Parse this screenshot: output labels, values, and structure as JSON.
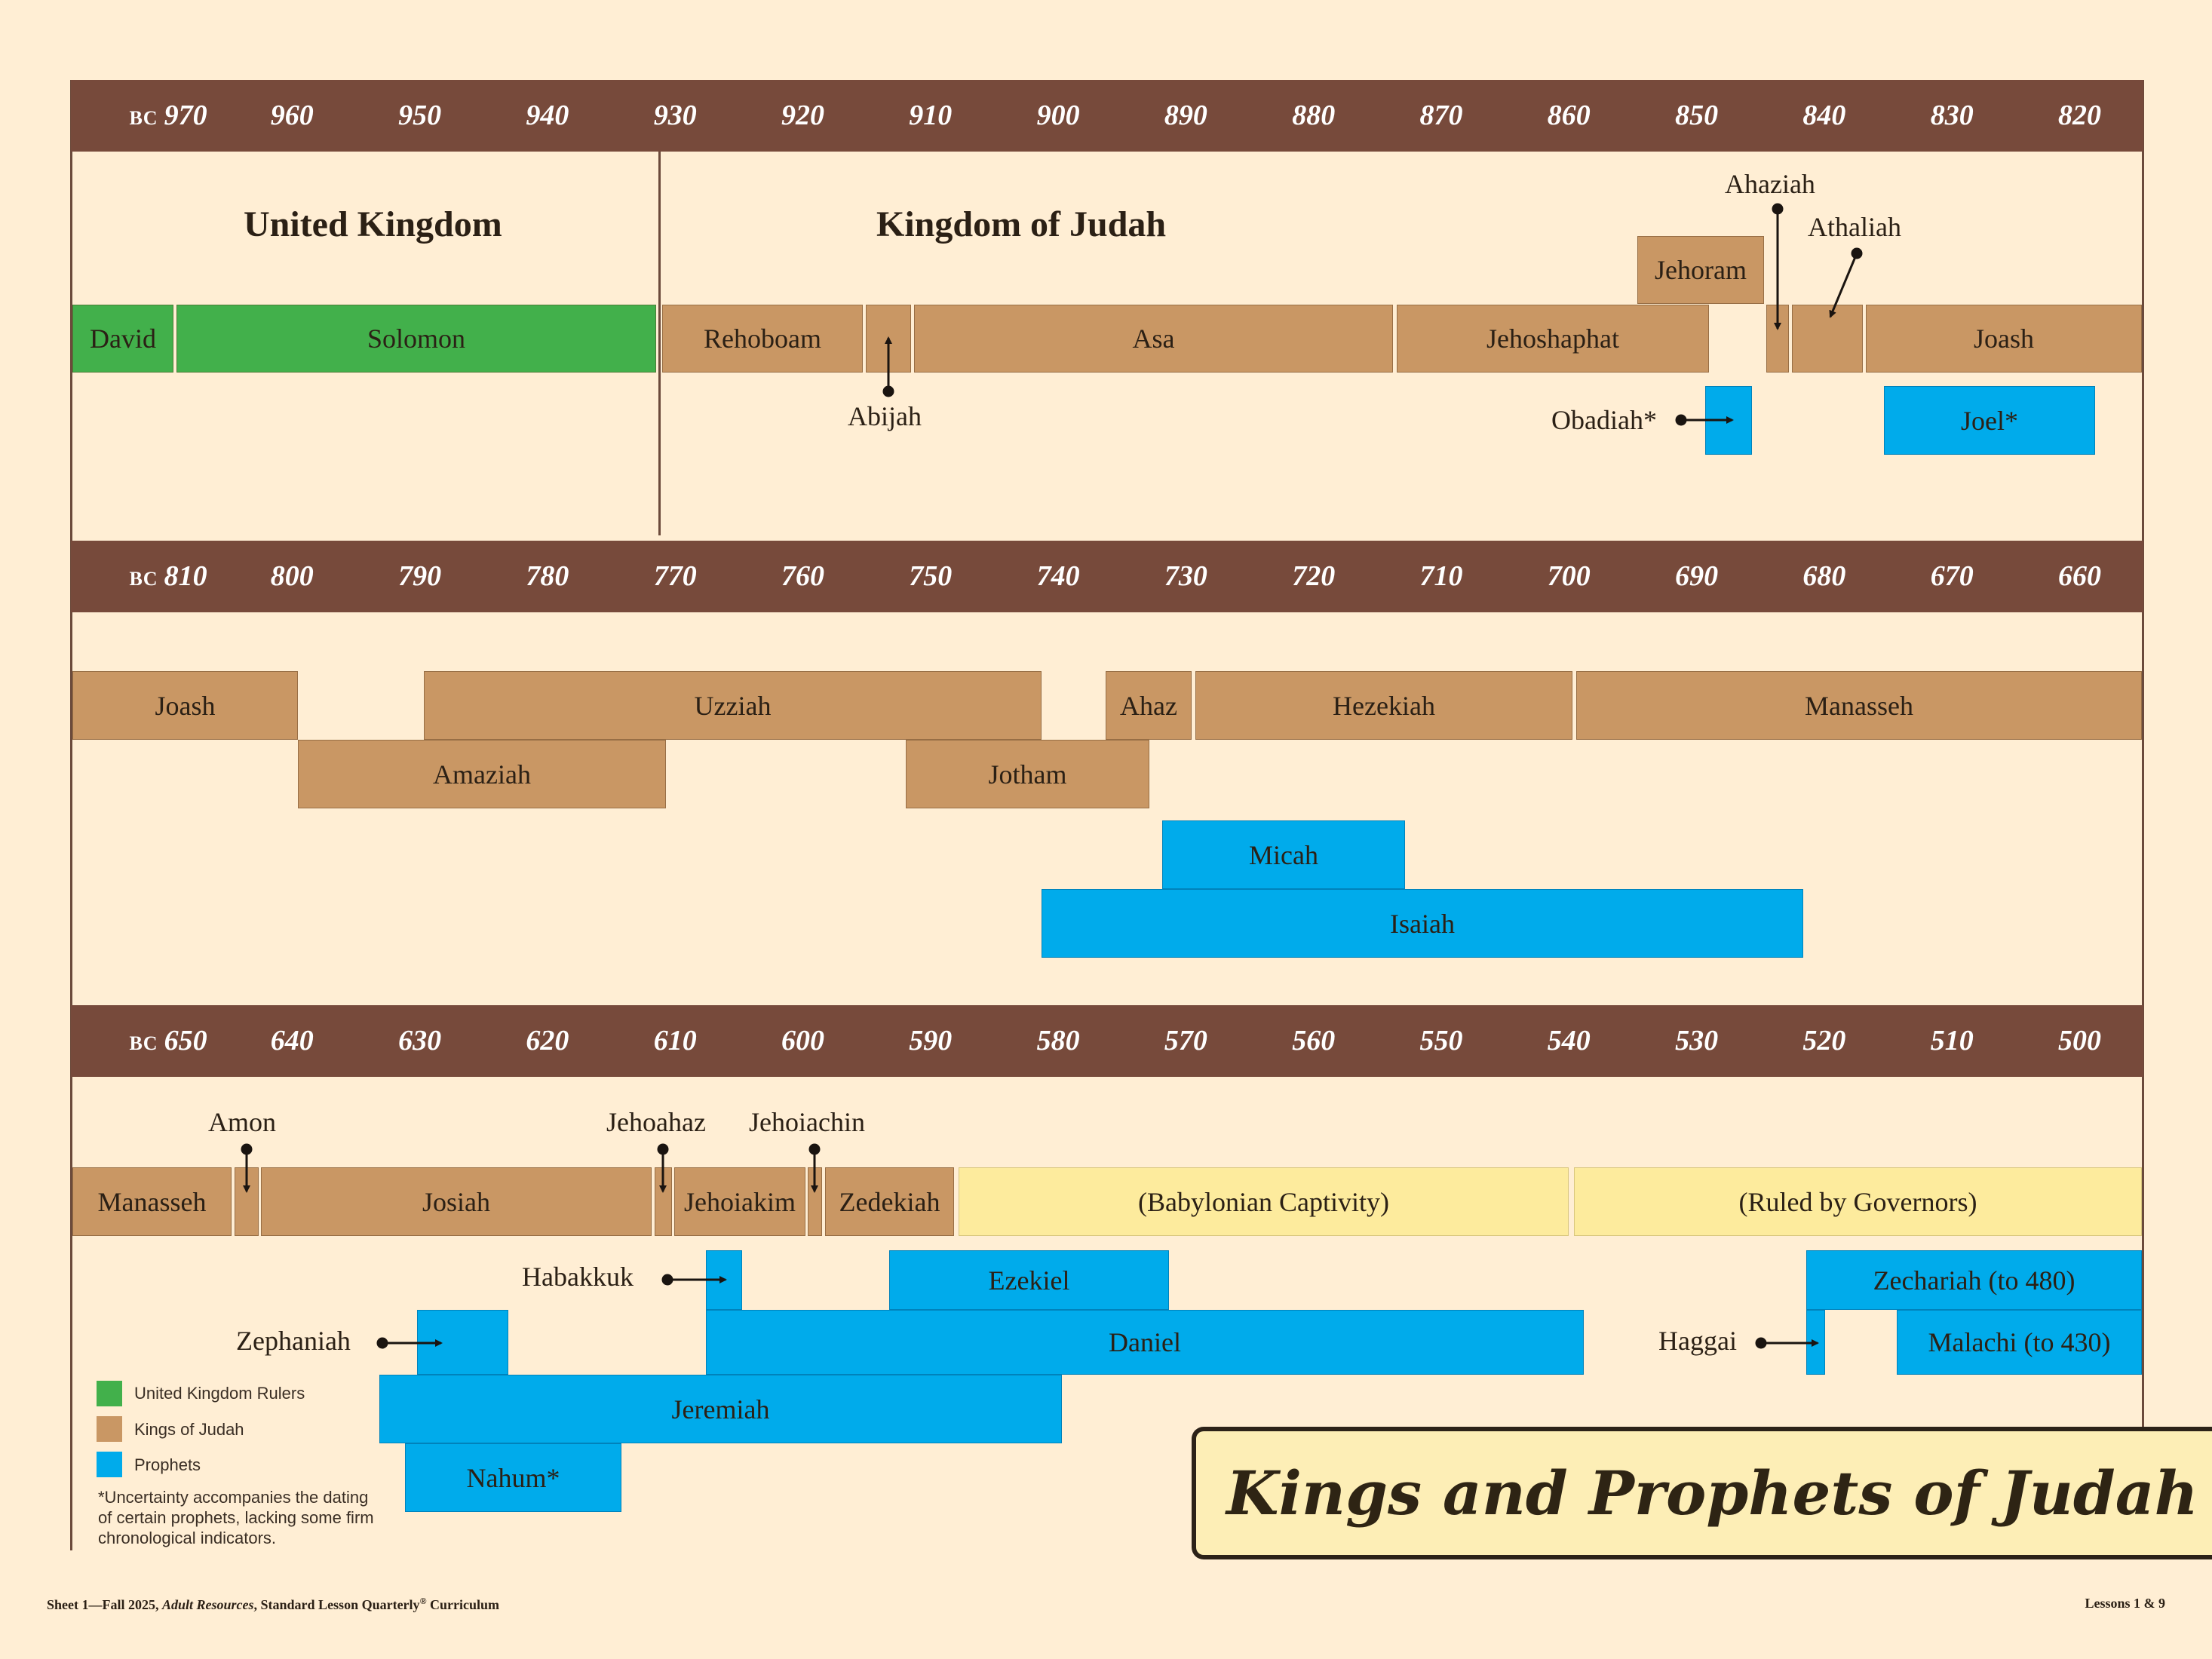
{
  "title": "Kings and Prophets of Judah",
  "colors": {
    "band": "#774a3b",
    "background": "#ffeed4",
    "united": "#42b04b",
    "judah": "#c99764",
    "prophet": "#00abeb",
    "captivity": "#fdeb9d"
  },
  "timelines": [
    {
      "era_prefix": "BC",
      "years": [
        "970",
        "960",
        "950",
        "940",
        "930",
        "920",
        "910",
        "900",
        "890",
        "880",
        "870",
        "860",
        "850",
        "840",
        "830",
        "820"
      ],
      "headings": [
        "United Kingdom",
        "Kingdom of Judah"
      ],
      "bars": [
        "David",
        "Solomon",
        "Rehoboam",
        "",
        "Asa",
        "Jehoshaphat",
        "Jehoram",
        "",
        "",
        "Joash",
        "",
        "Joel*"
      ],
      "callouts": [
        "Abijah",
        "Ahaziah",
        "Athaliah",
        "Obadiah*"
      ]
    },
    {
      "era_prefix": "BC",
      "years": [
        "810",
        "800",
        "790",
        "780",
        "770",
        "760",
        "750",
        "740",
        "730",
        "720",
        "710",
        "700",
        "690",
        "680",
        "670",
        "660"
      ],
      "bars": [
        "Joash",
        "Uzziah",
        "Ahaz",
        "Hezekiah",
        "Manasseh",
        "Amaziah",
        "Jotham",
        "Micah",
        "Isaiah"
      ],
      "callouts": []
    },
    {
      "era_prefix": "BC",
      "years": [
        "650",
        "640",
        "630",
        "620",
        "610",
        "600",
        "590",
        "580",
        "570",
        "560",
        "550",
        "540",
        "530",
        "520",
        "510",
        "500"
      ],
      "bars": [
        "Manasseh",
        "",
        "Josiah",
        "",
        "Jehoiakim",
        "",
        "Zedekiah",
        "(Babylonian Captivity)",
        "(Ruled by Governors)",
        "",
        "Ezekiel",
        "Zechariah (to 480)",
        "",
        "Daniel",
        "",
        "Malachi (to 430)",
        "Jeremiah",
        "Nahum*"
      ],
      "callouts": [
        "Amon",
        "Jehoahaz",
        "Jehoiachin",
        "Habakkuk",
        "Zephaniah",
        "Haggai"
      ]
    }
  ],
  "legend": [
    {
      "label": "United Kingdom Rulers",
      "color": "#42b04b"
    },
    {
      "label": "Kings of Judah",
      "color": "#c99764"
    },
    {
      "label": "Prophets",
      "color": "#00abeb"
    }
  ],
  "note": "*Uncertainty accompanies the dating of certain prophets, lacking some firm chronological indicators.",
  "footer": {
    "left_prefix": "Sheet 1—Fall 2025, ",
    "left_italic": "Adult Resources",
    "left_middle": ", Standard Lesson Quarterly",
    "left_reg": "®",
    "left_suffix": " Curriculum",
    "right": "Lessons 1 & 9"
  }
}
